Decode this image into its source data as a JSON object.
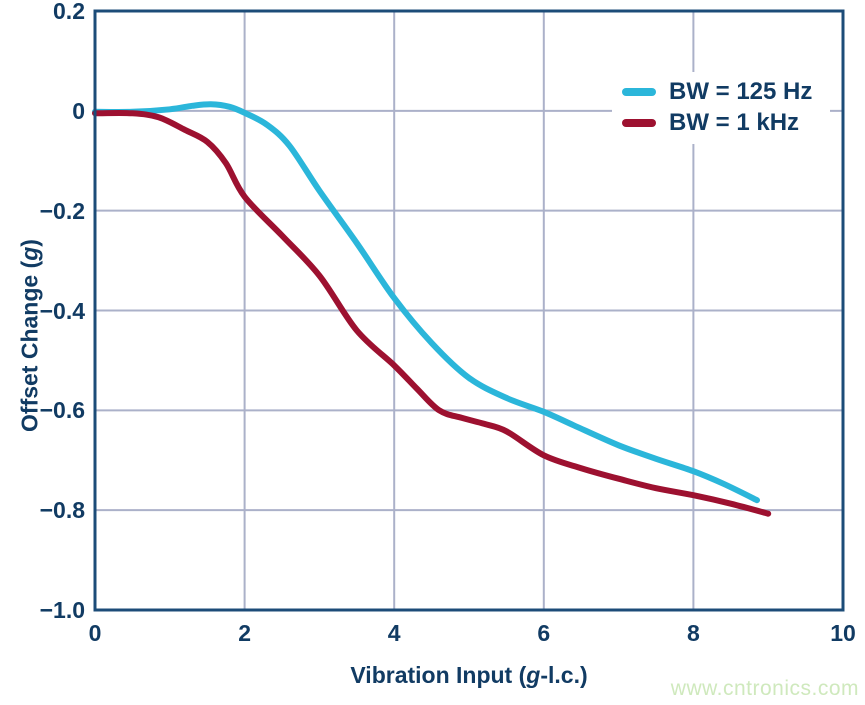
{
  "watermark": {
    "text": "www.cntronics.com",
    "color": "#cfe9bd"
  },
  "colors": {
    "text_navy": "#113b63",
    "axis_border": "#1c4c78",
    "gridline": "#abb1c9",
    "background": "#ffffff",
    "series_125hz": "#2bb6da",
    "series_1khz": "#9d1130"
  },
  "chart_data": {
    "type": "line",
    "title": "",
    "xlabel": "Vibration Input (g-l.c.)",
    "ylabel": "Offset Change (g)",
    "xlabel_parts": {
      "pre": "Vibration Input (",
      "italic": "g",
      "post": "-l.c.)"
    },
    "ylabel_parts": {
      "pre": "Offset Change (",
      "italic": "g",
      "post": ")"
    },
    "xlim": [
      0,
      10
    ],
    "ylim": [
      -1.0,
      0.2
    ],
    "grid": true,
    "legend_position": "top-right",
    "x_ticks": [
      {
        "v": 0,
        "label": "0"
      },
      {
        "v": 2,
        "label": "2"
      },
      {
        "v": 4,
        "label": "4"
      },
      {
        "v": 6,
        "label": "6"
      },
      {
        "v": 8,
        "label": "8"
      },
      {
        "v": 10,
        "label": "10"
      }
    ],
    "y_ticks": [
      {
        "v": 0.2,
        "label": "0.2"
      },
      {
        "v": 0,
        "label": "0"
      },
      {
        "v": -0.2,
        "label": "−0.2"
      },
      {
        "v": -0.4,
        "label": "−0.4"
      },
      {
        "v": -0.6,
        "label": "−0.6"
      },
      {
        "v": -0.8,
        "label": "−0.8"
      },
      {
        "v": -1.0,
        "label": "−1.0"
      }
    ],
    "series": [
      {
        "name": "BW = 125 Hz",
        "color": "#2bb6da",
        "points": [
          [
            0,
            -0.002
          ],
          [
            0.5,
            -0.002
          ],
          [
            1.0,
            0.003
          ],
          [
            1.3,
            0.01
          ],
          [
            1.55,
            0.013
          ],
          [
            1.8,
            0.008
          ],
          [
            2.0,
            -0.004
          ],
          [
            2.3,
            -0.028
          ],
          [
            2.6,
            -0.07
          ],
          [
            3.0,
            -0.16
          ],
          [
            3.5,
            -0.265
          ],
          [
            4.0,
            -0.375
          ],
          [
            4.5,
            -0.465
          ],
          [
            5.0,
            -0.535
          ],
          [
            5.5,
            -0.575
          ],
          [
            6.0,
            -0.603
          ],
          [
            6.4,
            -0.63
          ],
          [
            7.0,
            -0.67
          ],
          [
            7.5,
            -0.697
          ],
          [
            8.0,
            -0.722
          ],
          [
            8.4,
            -0.747
          ],
          [
            8.85,
            -0.78
          ]
        ]
      },
      {
        "name": "BW = 1 kHz",
        "color": "#9d1130",
        "points": [
          [
            0,
            -0.005
          ],
          [
            0.5,
            -0.005
          ],
          [
            0.85,
            -0.013
          ],
          [
            1.2,
            -0.038
          ],
          [
            1.5,
            -0.062
          ],
          [
            1.75,
            -0.105
          ],
          [
            2.0,
            -0.172
          ],
          [
            2.5,
            -0.25
          ],
          [
            3.0,
            -0.33
          ],
          [
            3.5,
            -0.44
          ],
          [
            4.0,
            -0.51
          ],
          [
            4.3,
            -0.556
          ],
          [
            4.6,
            -0.6
          ],
          [
            4.9,
            -0.615
          ],
          [
            5.2,
            -0.627
          ],
          [
            5.5,
            -0.642
          ],
          [
            6.0,
            -0.69
          ],
          [
            6.5,
            -0.716
          ],
          [
            7.0,
            -0.737
          ],
          [
            7.5,
            -0.756
          ],
          [
            8.0,
            -0.77
          ],
          [
            8.5,
            -0.787
          ],
          [
            9.0,
            -0.807
          ]
        ]
      }
    ]
  }
}
